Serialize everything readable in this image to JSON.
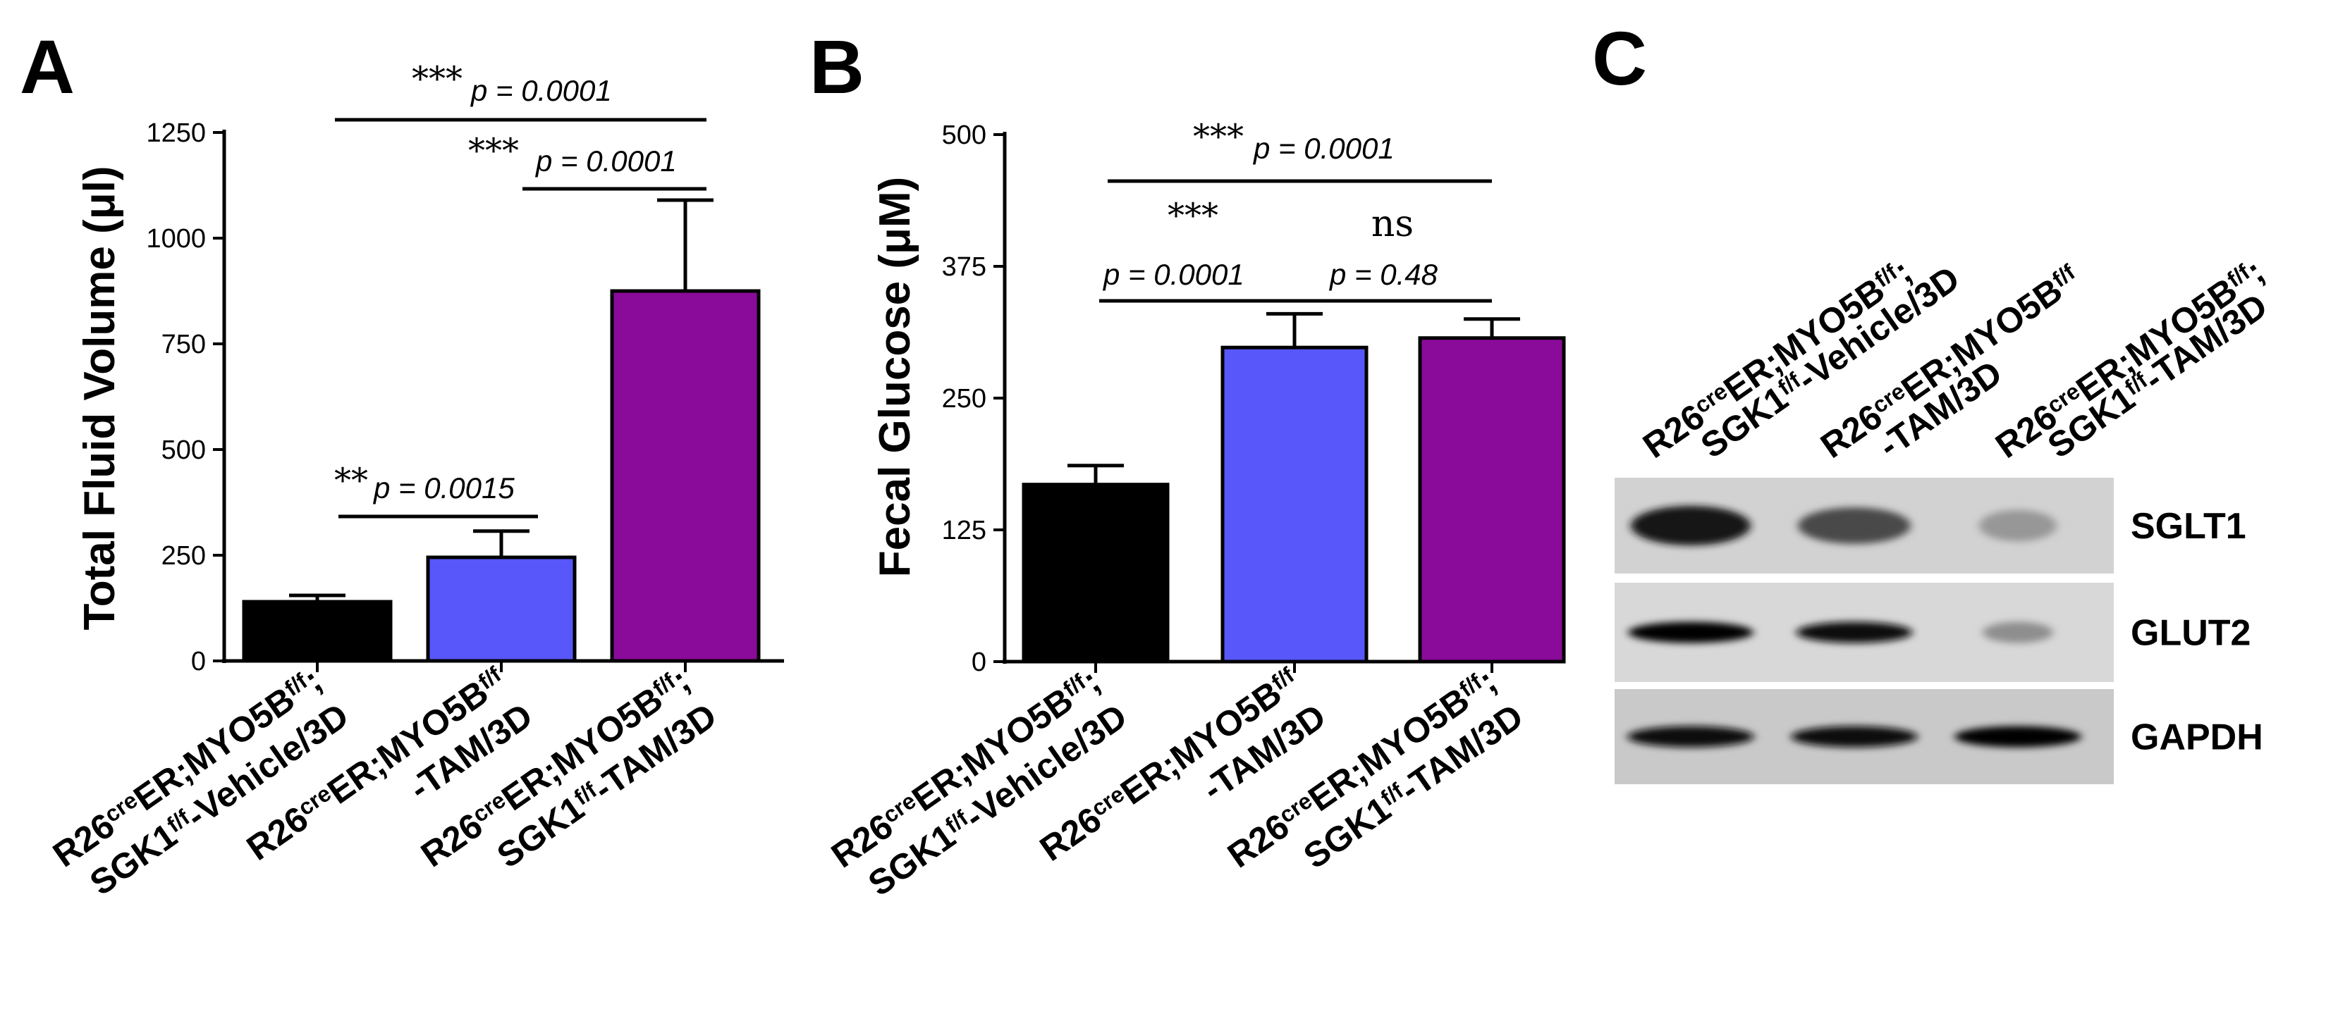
{
  "panels": {
    "a": "A",
    "b": "B",
    "c": "C"
  },
  "chart_data": [
    {
      "type": "bar",
      "panel": "A",
      "title": "",
      "ylabel": "Total Fluid Volume (μl)",
      "xlabel": "",
      "ylim": [
        0,
        1250
      ],
      "yticks": [
        0,
        250,
        500,
        750,
        1000,
        1250
      ],
      "categories": [
        {
          "line1": "R26creER;MYO5Bf/f;",
          "line2": "SGK1f/f-Vehicle/3D"
        },
        {
          "line1": "R26creER;MYO5Bf/f",
          "line2": "-TAM/3D"
        },
        {
          "line1": "R26creER;MYO5Bf/f;",
          "line2": "SGK1f/f-TAM/3D"
        }
      ],
      "values": [
        140,
        245,
        875
      ],
      "errors": [
        15,
        62,
        215
      ],
      "colors": [
        "#000000",
        "#5757fa",
        "#8a0a99"
      ],
      "comparisons": [
        {
          "from": 0,
          "to": 1,
          "stars": "**",
          "p": "p = 0.0015"
        },
        {
          "from": 1,
          "to": 2,
          "stars": "***",
          "p": "p = 0.0001"
        },
        {
          "from": 0,
          "to": 2,
          "stars": "***",
          "p": "p = 0.0001"
        }
      ]
    },
    {
      "type": "bar",
      "panel": "B",
      "title": "",
      "ylabel": "Fecal Glucose (μM)",
      "xlabel": "",
      "ylim": [
        0,
        500
      ],
      "yticks": [
        0,
        125,
        250,
        375,
        500
      ],
      "categories": [
        {
          "line1": "R26creER;MYO5Bf/f;",
          "line2": "SGK1f/f-Vehicle/3D"
        },
        {
          "line1": "R26creER;MYO5Bf/f",
          "line2": "-TAM/3D"
        },
        {
          "line1": "R26creER;MYO5Bf/f;",
          "line2": "SGK1f/f-TAM/3D"
        }
      ],
      "values": [
        168,
        298,
        307
      ],
      "errors": [
        18,
        32,
        18
      ],
      "colors": [
        "#000000",
        "#5757fa",
        "#8a0a99"
      ],
      "comparisons": [
        {
          "from": 0,
          "to": 1,
          "stars": "***",
          "p": "p = 0.0001"
        },
        {
          "from": 1,
          "to": 2,
          "stars": "ns",
          "p": "p = 0.48"
        },
        {
          "from": 0,
          "to": 2,
          "stars": "***",
          "p": "p = 0.0001"
        }
      ]
    }
  ],
  "blot": {
    "lanes": [
      {
        "line1": "R26creER;MYO5Bf/f;",
        "line2": "SGK1f/f-Vehicle/3D"
      },
      {
        "line1": "R26creER;MYO5Bf/f",
        "line2": "-TAM/3D"
      },
      {
        "line1": "R26creER;MYO5Bf/f;",
        "line2": "SGK1f/f-TAM/3D"
      }
    ],
    "rows": [
      {
        "label": "SGLT1",
        "intensities": [
          0.9,
          0.65,
          0.25
        ]
      },
      {
        "label": "GLUT2",
        "intensities": [
          1.0,
          0.95,
          0.3
        ]
      },
      {
        "label": "GAPDH",
        "intensities": [
          0.95,
          0.95,
          1.0
        ]
      }
    ]
  }
}
